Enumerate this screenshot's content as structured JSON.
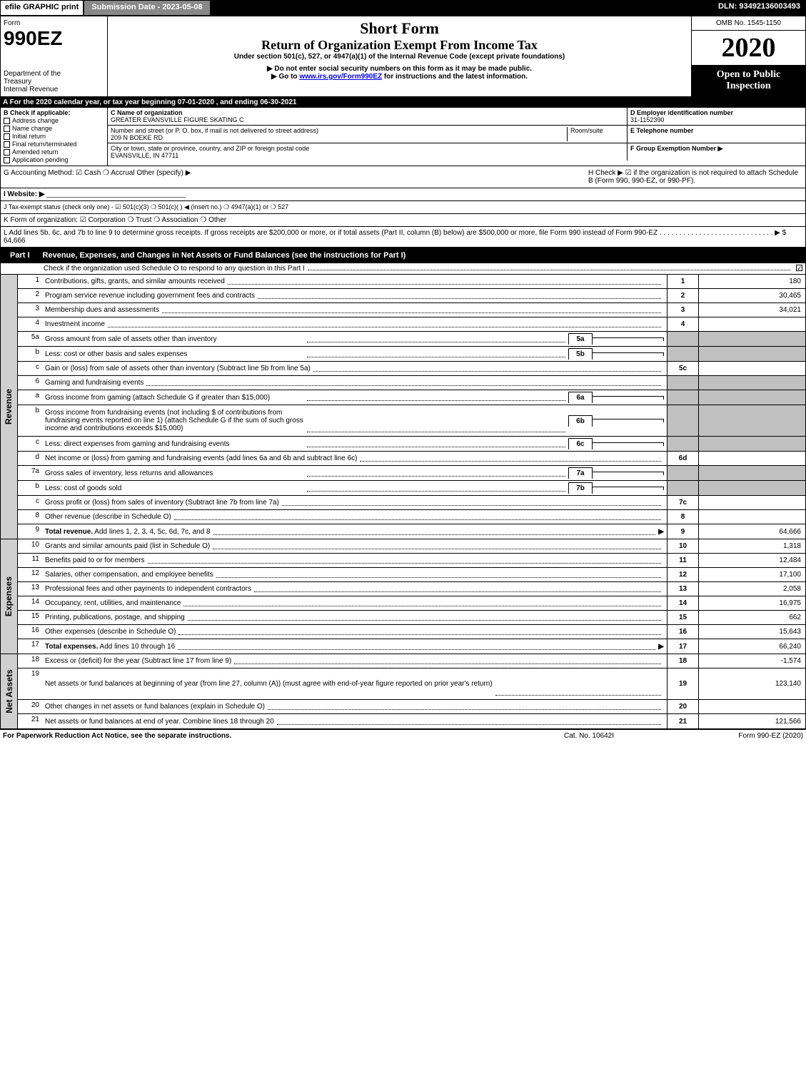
{
  "top": {
    "efile": "efile GRAPHIC print",
    "submission": "Submission Date - 2023-05-08",
    "dln": "DLN: 93492136003493"
  },
  "header": {
    "form_word": "Form",
    "form_number": "990EZ",
    "dept_line1": "Department of the",
    "dept_line2": "Treasury",
    "dept_line3": "Internal Revenue",
    "short_form": "Short Form",
    "return_title": "Return of Organization Exempt From Income Tax",
    "under": "Under section 501(c), 527, or 4947(a)(1) of the Internal Revenue Code (except private foundations)",
    "notice": "▶ Do not enter social security numbers on this form as it may be made public.",
    "goto_pre": "▶ Go to ",
    "goto_link": "www.irs.gov/Form990EZ",
    "goto_post": " for instructions and the latest information.",
    "omb": "OMB No. 1545-1150",
    "year": "2020",
    "open": "Open to Public Inspection"
  },
  "row_a": "A For the 2020 calendar year, or tax year beginning 07-01-2020 , and ending 06-30-2021",
  "section_b": {
    "title": "B  Check if applicable:",
    "opts": [
      "Address change",
      "Name change",
      "Initial return",
      "Final return/terminated",
      "Amended return",
      "Application pending"
    ],
    "c_label": "C Name of organization",
    "c_name": "GREATER EVANSVILLE FIGURE SKATING C",
    "addr_label": "Number and street (or P. O. box, if mail is not delivered to street address)",
    "addr": "209 N BOEKE RD",
    "room_label": "Room/suite",
    "city_label": "City or town, state or province, country, and ZIP or foreign postal code",
    "city": "EVANSVILLE, IN  47711",
    "d_label": "D Employer identification number",
    "d_val": "31-1152390",
    "e_label": "E Telephone number",
    "f_label": "F Group Exemption Number   ▶"
  },
  "line_g_method": "G Accounting Method:   ☑ Cash   ❍ Accrual   Other (specify) ▶",
  "line_h": "H  Check ▶  ☑  if the organization is not required to attach Schedule B (Form 990, 990-EZ, or 990-PF).",
  "line_i": "I Website: ▶",
  "line_j": "J Tax-exempt status (check only one) - ☑ 501(c)(3)  ❍ 501(c)(  ) ◀ (insert no.)  ❍ 4947(a)(1) or  ❍ 527",
  "line_k": "K Form of organization:   ☑ Corporation   ❍ Trust   ❍ Association   ❍ Other",
  "line_l": "L Add lines 5b, 6c, and 7b to line 9 to determine gross receipts. If gross receipts are $200,000 or more, or if total assets (Part II, column (B) below) are $500,000 or more, file Form 990 instead of Form 990-EZ . . . . . . . . . . . . . . . . . . . . . . . . . . . . . ▶ $ 64,666",
  "part1": {
    "label": "Part I",
    "title": "Revenue, Expenses, and Changes in Net Assets or Fund Balances (see the instructions for Part I)",
    "check_desc": "Check if the organization used Schedule O to respond to any question in this Part I"
  },
  "revenue": [
    {
      "n": "1",
      "d": "Contributions, gifts, grants, and similar amounts received",
      "tn": "1",
      "v": "180"
    },
    {
      "n": "2",
      "d": "Program service revenue including government fees and contracts",
      "tn": "2",
      "v": "30,465"
    },
    {
      "n": "3",
      "d": "Membership dues and assessments",
      "tn": "3",
      "v": "34,021"
    },
    {
      "n": "4",
      "d": "Investment income",
      "tn": "4",
      "v": ""
    },
    {
      "n": "5a",
      "d": "Gross amount from sale of assets other than inventory",
      "sub": "5a",
      "shaded": true
    },
    {
      "n": "b",
      "d": "Less: cost or other basis and sales expenses",
      "sub": "5b",
      "shaded": true
    },
    {
      "n": "c",
      "d": "Gain or (loss) from sale of assets other than inventory (Subtract line 5b from line 5a)",
      "tn": "5c",
      "v": ""
    },
    {
      "n": "6",
      "d": "Gaming and fundraising events",
      "shaded": true,
      "noline": true
    },
    {
      "n": "a",
      "d": "Gross income from gaming (attach Schedule G if greater than $15,000)",
      "sub": "6a",
      "shaded": true
    },
    {
      "n": "b",
      "d": "Gross income from fundraising events (not including $                      of contributions from fundraising events reported on line 1) (attach Schedule G if the sum of such gross income and contributions exceeds $15,000)",
      "sub": "6b",
      "shaded": true,
      "tall": true
    },
    {
      "n": "c",
      "d": "Less: direct expenses from gaming and fundraising events",
      "sub": "6c",
      "shaded": true
    },
    {
      "n": "d",
      "d": "Net income or (loss) from gaming and fundraising events (add lines 6a and 6b and subtract line 6c)",
      "tn": "6d",
      "v": ""
    },
    {
      "n": "7a",
      "d": "Gross sales of inventory, less returns and allowances",
      "sub": "7a",
      "shaded": true
    },
    {
      "n": "b",
      "d": "Less: cost of goods sold",
      "sub": "7b",
      "shaded": true
    },
    {
      "n": "c",
      "d": "Gross profit or (loss) from sales of inventory (Subtract line 7b from line 7a)",
      "tn": "7c",
      "v": ""
    },
    {
      "n": "8",
      "d": "Other revenue (describe in Schedule O)",
      "tn": "8",
      "v": ""
    },
    {
      "n": "9",
      "d": "Total revenue. Add lines 1, 2, 3, 4, 5c, 6d, 7c, and 8",
      "tn": "9",
      "v": "64,666",
      "bold": true,
      "arrow": true
    }
  ],
  "expenses": [
    {
      "n": "10",
      "d": "Grants and similar amounts paid (list in Schedule O)",
      "tn": "10",
      "v": "1,318"
    },
    {
      "n": "11",
      "d": "Benefits paid to or for members",
      "tn": "11",
      "v": "12,484"
    },
    {
      "n": "12",
      "d": "Salaries, other compensation, and employee benefits",
      "tn": "12",
      "v": "17,100"
    },
    {
      "n": "13",
      "d": "Professional fees and other payments to independent contractors",
      "tn": "13",
      "v": "2,058"
    },
    {
      "n": "14",
      "d": "Occupancy, rent, utilities, and maintenance",
      "tn": "14",
      "v": "16,975"
    },
    {
      "n": "15",
      "d": "Printing, publications, postage, and shipping",
      "tn": "15",
      "v": "662"
    },
    {
      "n": "16",
      "d": "Other expenses (describe in Schedule O)",
      "tn": "16",
      "v": "15,643"
    },
    {
      "n": "17",
      "d": "Total expenses. Add lines 10 through 16",
      "tn": "17",
      "v": "66,240",
      "bold": true,
      "arrow": true
    }
  ],
  "netassets": [
    {
      "n": "18",
      "d": "Excess or (deficit) for the year (Subtract line 17 from line 9)",
      "tn": "18",
      "v": "-1,574"
    },
    {
      "n": "19",
      "d": "Net assets or fund balances at beginning of year (from line 27, column (A)) (must agree with end-of-year figure reported on prior year's return)",
      "tn": "19",
      "v": "123,140",
      "tall": true
    },
    {
      "n": "20",
      "d": "Other changes in net assets or fund balances (explain in Schedule O)",
      "tn": "20",
      "v": ""
    },
    {
      "n": "21",
      "d": "Net assets or fund balances at end of year. Combine lines 18 through 20",
      "tn": "21",
      "v": "121,566"
    }
  ],
  "side_labels": {
    "revenue": "Revenue",
    "expenses": "Expenses",
    "netassets": "Net Assets"
  },
  "footer": {
    "left": "For Paperwork Reduction Act Notice, see the separate instructions.",
    "center": "Cat. No. 10642I",
    "right": "Form 990-EZ (2020)"
  }
}
